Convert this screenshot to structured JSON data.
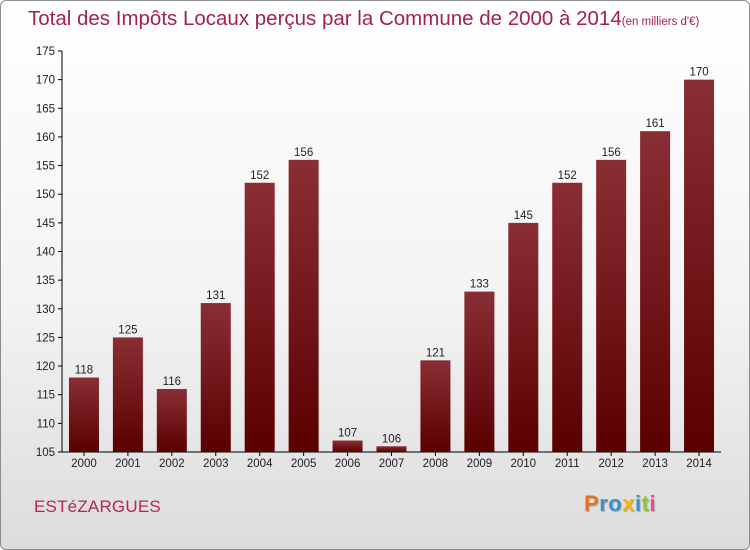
{
  "title": "Total des Impôts Locaux perçus par la Commune de 2000 à 2014",
  "unit": "(en milliers d'€)",
  "commune": "ESTéZARGUES",
  "logo": {
    "text": "Proxiti",
    "colors": [
      "#e8731a",
      "#3d8fc8",
      "#3d8fc8",
      "#f2b705",
      "#3d8fc8",
      "#8cc63f",
      "#e84f8a"
    ]
  },
  "colors": {
    "title": "#a3224a",
    "bar_top": "#8a2e35",
    "bar_bottom": "#5a0000"
  },
  "chart_data": {
    "type": "bar",
    "title": "Total des Impôts Locaux perçus par la Commune de 2000 à 2014",
    "xlabel": "",
    "ylabel": "en milliers d'€",
    "categories": [
      "2000",
      "2001",
      "2002",
      "2003",
      "2004",
      "2005",
      "2006",
      "2007",
      "2008",
      "2009",
      "2010",
      "2011",
      "2012",
      "2013",
      "2014"
    ],
    "values": [
      118,
      125,
      116,
      131,
      152,
      156,
      107,
      106,
      121,
      133,
      145,
      152,
      156,
      161,
      170
    ],
    "ylim": [
      105,
      175
    ],
    "yticks": [
      105,
      110,
      115,
      120,
      125,
      130,
      135,
      140,
      145,
      150,
      155,
      160,
      165,
      170,
      175
    ],
    "grid": false
  }
}
